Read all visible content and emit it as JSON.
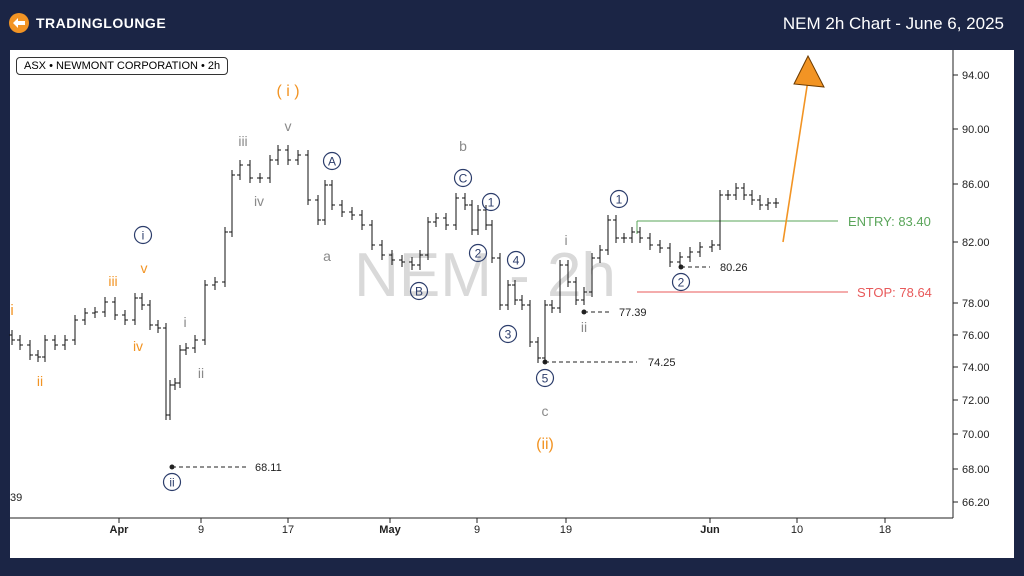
{
  "header": {
    "logo_text": "TRADINGLOUNGE",
    "title": "NEM 2h Chart - June 6, 2025"
  },
  "colors": {
    "background": "#1b2545",
    "orange": "#f29424",
    "navy": "#2c3d6b",
    "gray": "#8a8a8a",
    "entry": "#5aa55a",
    "stop": "#e8595a"
  },
  "chart_data": {
    "type": "ohlc",
    "ticker_label": "ASX • NEWMONT CORPORATION • 2h",
    "watermark": "NEM - 2h",
    "y_ticks": [
      "94.00",
      "90.00",
      "86.00",
      "82.00",
      "78.00",
      "76.00",
      "74.00",
      "72.00",
      "70.00",
      "68.00",
      "66.20"
    ],
    "x_ticks": [
      "Apr",
      "9",
      "17",
      "May",
      "9",
      "19",
      "Jun",
      "10",
      "18"
    ],
    "entry": {
      "label": "ENTRY: 83.40",
      "value": 83.4
    },
    "stop": {
      "label": "STOP: 78.64",
      "value": 78.64
    },
    "level_labels": [
      {
        "text": "68.11",
        "value": 68.11
      },
      {
        "text": "74.25",
        "value": 74.25
      },
      {
        "text": "77.39",
        "value": 77.39
      },
      {
        "text": "80.26",
        "value": 80.26
      }
    ],
    "edge_label": "39",
    "wave_labels": {
      "orange": [
        "i",
        "ii",
        "iii",
        "iv",
        "v",
        "( i )",
        "(ii)"
      ],
      "navy": [
        "i",
        "ii",
        "A",
        "B",
        "C",
        "1",
        "2",
        "3",
        "4",
        "5",
        "1",
        "2"
      ],
      "gray": [
        "i",
        "ii",
        "iii",
        "iv",
        "v",
        "a",
        "b",
        "c",
        "i",
        "ii"
      ]
    }
  }
}
